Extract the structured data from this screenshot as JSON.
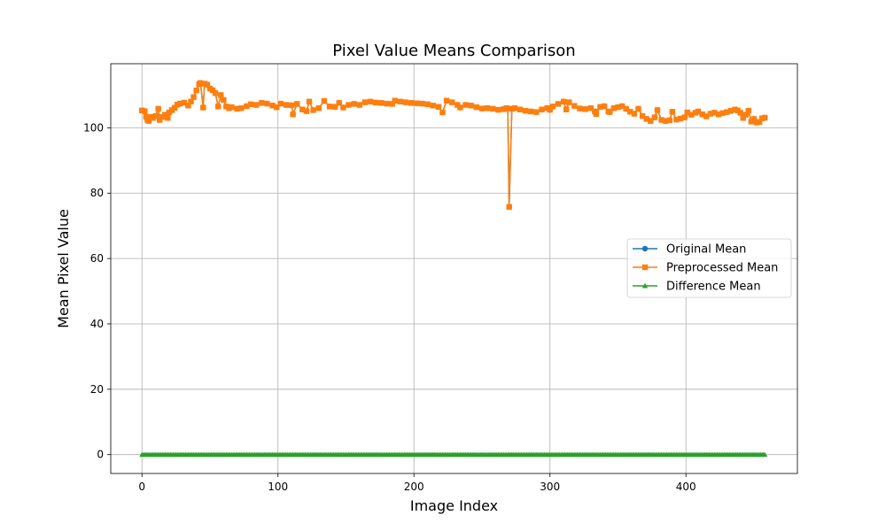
{
  "chart_data": {
    "type": "line",
    "title": "Pixel Value Means Comparison",
    "xlabel": "Image Index",
    "ylabel": "Mean Pixel Value",
    "xlim": [
      -22.95,
      481.95
    ],
    "ylim": [
      -5.77,
      119.6
    ],
    "xticks": [
      0,
      100,
      200,
      300,
      400
    ],
    "yticks": [
      0,
      20,
      40,
      60,
      80,
      100
    ],
    "grid": true,
    "legend_position": "center-right",
    "series": [
      {
        "name": "Original Mean",
        "color": "#1f77b4",
        "marker": "circle",
        "points": [
          [
            0,
            105.3
          ],
          [
            2,
            105.1
          ],
          [
            3,
            103.4
          ],
          [
            4,
            102.4
          ],
          [
            5,
            102.1
          ],
          [
            6,
            103.3
          ],
          [
            8,
            103.0
          ],
          [
            10,
            103.6
          ],
          [
            12,
            105.8
          ],
          [
            13,
            102.4
          ],
          [
            15,
            103.3
          ],
          [
            17,
            104.0
          ],
          [
            19,
            103.0
          ],
          [
            20,
            104.7
          ],
          [
            22,
            105.4
          ],
          [
            24,
            106.1
          ],
          [
            26,
            107.1
          ],
          [
            28,
            107.4
          ],
          [
            31,
            107.7
          ],
          [
            34,
            106.8
          ],
          [
            36,
            108.0
          ],
          [
            38,
            109.4
          ],
          [
            40,
            111.4
          ],
          [
            42,
            113.3
          ],
          [
            43,
            113.7
          ],
          [
            45,
            106.2
          ],
          [
            46,
            113.5
          ],
          [
            48,
            113.2
          ],
          [
            50,
            112.0
          ],
          [
            52,
            111.5
          ],
          [
            54,
            110.6
          ],
          [
            56,
            106.5
          ],
          [
            58,
            110.0
          ],
          [
            60,
            108.5
          ],
          [
            62,
            106.5
          ],
          [
            64,
            106.0
          ],
          [
            66,
            106.3
          ],
          [
            70,
            105.8
          ],
          [
            73,
            106.0
          ],
          [
            77,
            106.6
          ],
          [
            80,
            107.2
          ],
          [
            84,
            107.0
          ],
          [
            88,
            107.6
          ],
          [
            92,
            107.4
          ],
          [
            96,
            106.8
          ],
          [
            99,
            106.3
          ],
          [
            102,
            107.4
          ],
          [
            106,
            107.0
          ],
          [
            110,
            106.9
          ],
          [
            111,
            104.1
          ],
          [
            114,
            107.3
          ],
          [
            118,
            105.6
          ],
          [
            121,
            105.1
          ],
          [
            123,
            108.0
          ],
          [
            126,
            105.4
          ],
          [
            130,
            106.0
          ],
          [
            134,
            108.2
          ],
          [
            138,
            106.5
          ],
          [
            142,
            106.4
          ],
          [
            145,
            107.6
          ],
          [
            148,
            106.2
          ],
          [
            152,
            107.0
          ],
          [
            156,
            107.3
          ],
          [
            160,
            107.0
          ],
          [
            164,
            107.8
          ],
          [
            168,
            108.0
          ],
          [
            172,
            107.7
          ],
          [
            176,
            107.6
          ],
          [
            180,
            107.4
          ],
          [
            184,
            107.3
          ],
          [
            186,
            108.3
          ],
          [
            190,
            108.0
          ],
          [
            194,
            107.8
          ],
          [
            198,
            107.6
          ],
          [
            202,
            107.5
          ],
          [
            206,
            107.4
          ],
          [
            210,
            107.2
          ],
          [
            214,
            106.8
          ],
          [
            218,
            106.4
          ],
          [
            221,
            104.7
          ],
          [
            224,
            108.3
          ],
          [
            228,
            107.8
          ],
          [
            232,
            107.0
          ],
          [
            234,
            106.2
          ],
          [
            238,
            107.0
          ],
          [
            242,
            106.8
          ],
          [
            246,
            106.3
          ],
          [
            250,
            105.9
          ],
          [
            254,
            106.0
          ],
          [
            258,
            105.8
          ],
          [
            262,
            105.5
          ],
          [
            266,
            105.7
          ],
          [
            268,
            106.0
          ],
          [
            269,
            105.9
          ],
          [
            270,
            75.8
          ],
          [
            272,
            105.8
          ],
          [
            274,
            106.0
          ],
          [
            278,
            105.6
          ],
          [
            282,
            105.2
          ],
          [
            286,
            105.0
          ],
          [
            290,
            104.8
          ],
          [
            294,
            105.6
          ],
          [
            298,
            106.0
          ],
          [
            300,
            105.5
          ],
          [
            302,
            106.5
          ],
          [
            306,
            107.3
          ],
          [
            310,
            108.0
          ],
          [
            312,
            105.6
          ],
          [
            314,
            107.8
          ],
          [
            318,
            106.7
          ],
          [
            322,
            105.9
          ],
          [
            326,
            105.7
          ],
          [
            330,
            106.0
          ],
          [
            333,
            105.0
          ],
          [
            334,
            104.2
          ],
          [
            337,
            106.4
          ],
          [
            340,
            106.6
          ],
          [
            343,
            105.0
          ],
          [
            344,
            104.8
          ],
          [
            347,
            106.0
          ],
          [
            350,
            106.3
          ],
          [
            353,
            106.6
          ],
          [
            356,
            105.8
          ],
          [
            359,
            104.9
          ],
          [
            362,
            104.3
          ],
          [
            365,
            105.8
          ],
          [
            368,
            103.6
          ],
          [
            371,
            102.7
          ],
          [
            374,
            102.1
          ],
          [
            377,
            103.2
          ],
          [
            379,
            105.4
          ],
          [
            382,
            102.4
          ],
          [
            385,
            102.1
          ],
          [
            388,
            102.3
          ],
          [
            390,
            104.9
          ],
          [
            393,
            102.5
          ],
          [
            396,
            102.8
          ],
          [
            399,
            103.2
          ],
          [
            401,
            104.7
          ],
          [
            404,
            104.0
          ],
          [
            407,
            104.6
          ],
          [
            409,
            105.0
          ],
          [
            412,
            104.1
          ],
          [
            415,
            103.5
          ],
          [
            418,
            104.3
          ],
          [
            421,
            104.6
          ],
          [
            424,
            104.1
          ],
          [
            427,
            104.5
          ],
          [
            430,
            104.8
          ],
          [
            433,
            105.2
          ],
          [
            436,
            105.6
          ],
          [
            438,
            105.3
          ],
          [
            440,
            104.6
          ],
          [
            442,
            103.0
          ],
          [
            444,
            104.0
          ],
          [
            446,
            105.2
          ],
          [
            448,
            101.9
          ],
          [
            450,
            102.7
          ],
          [
            452,
            101.6
          ],
          [
            454,
            101.8
          ],
          [
            456,
            102.9
          ],
          [
            458,
            103.1
          ]
        ]
      },
      {
        "name": "Preprocessed Mean",
        "color": "#ff7f0e",
        "marker": "square",
        "same_as": "Original Mean"
      },
      {
        "name": "Difference Mean",
        "color": "#2ca02c",
        "marker": "triangle",
        "constant": 0,
        "x_range": [
          0,
          458
        ]
      }
    ]
  }
}
